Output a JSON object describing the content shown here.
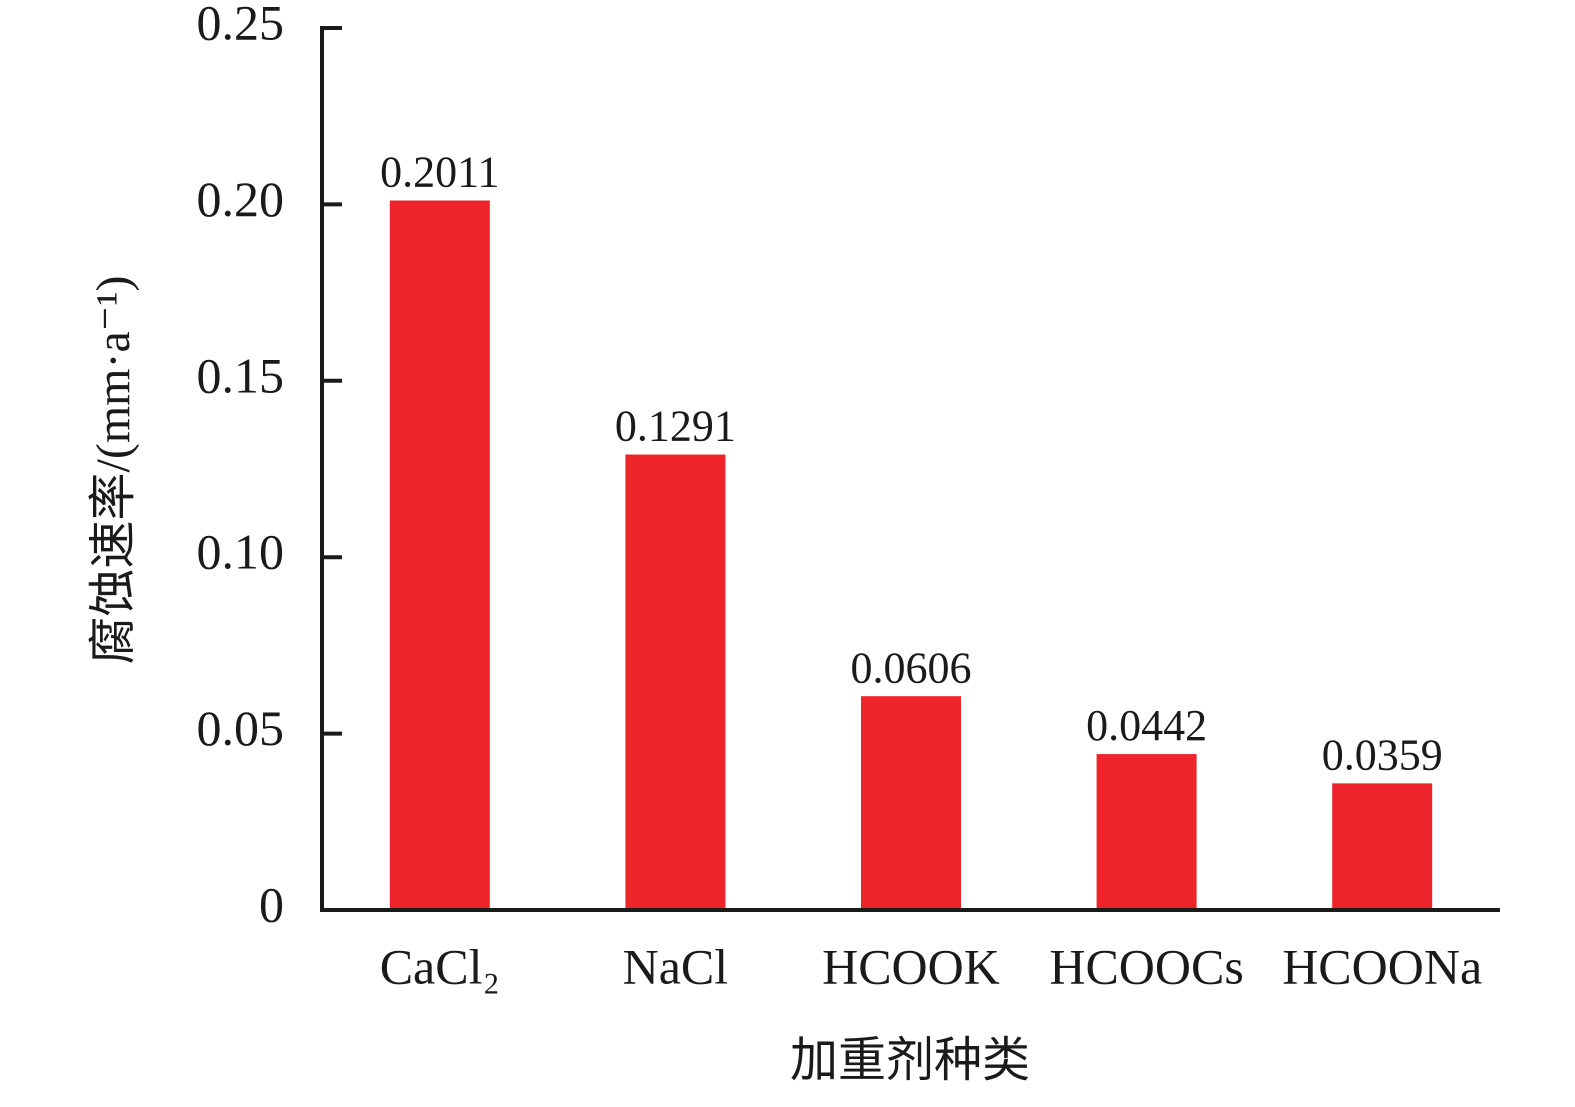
{
  "chart_data": {
    "type": "bar",
    "categories": [
      "CaCl₂",
      "NaCl",
      "HCOOK",
      "HCOOCs",
      "HCOONa"
    ],
    "values": [
      0.2011,
      0.1291,
      0.0606,
      0.0442,
      0.0359
    ],
    "color": "#ee242b",
    "ylim": [
      0,
      0.25
    ],
    "yticks": [
      0,
      0.05,
      {
        "value": 0.1,
        "label": "0.10"
      },
      0.15,
      {
        "value": 0.2,
        "label": "0.20"
      },
      0.25
    ],
    "x_label": "加重剂种类",
    "y_label": "腐蚀速率/(mm·a⁻¹)",
    "grid": false
  }
}
